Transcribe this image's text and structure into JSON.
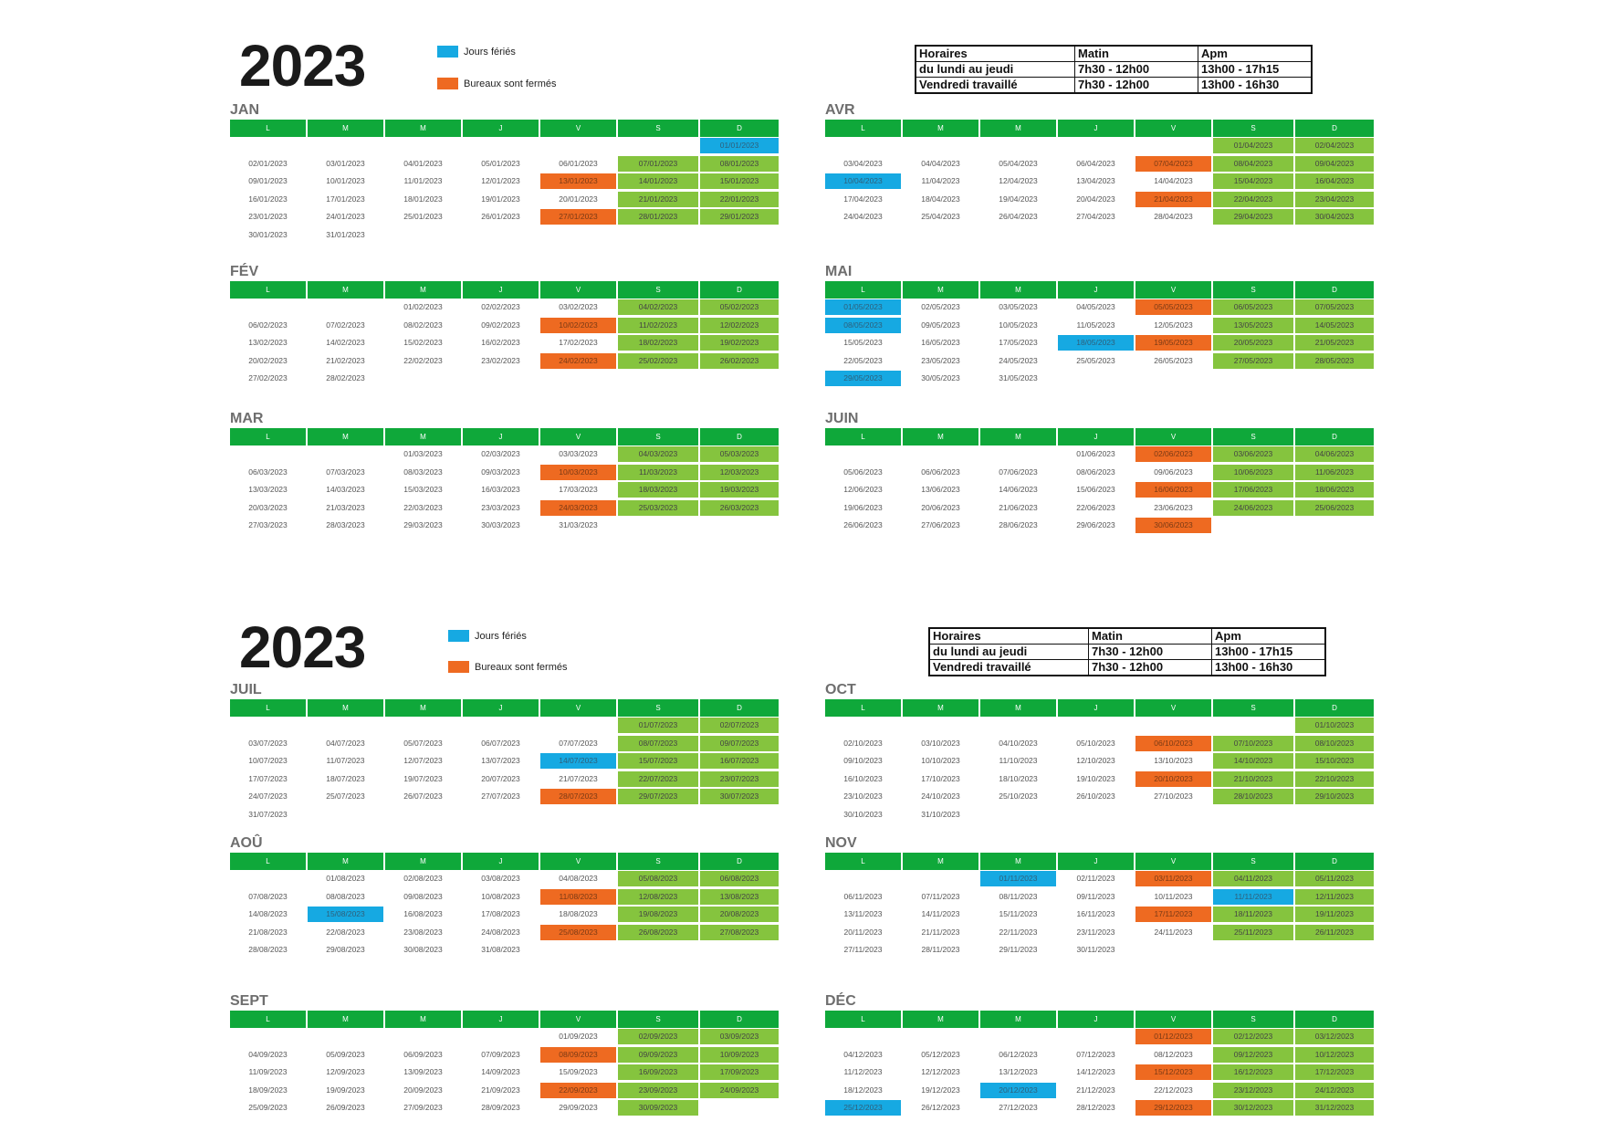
{
  "sections": [
    {
      "year": "2023",
      "legend": {
        "holiday_label": "Jours fériés",
        "closed_label": "Bureaux sont fermés"
      },
      "schedule": [
        [
          "Horaires",
          "Matin",
          "Apm"
        ],
        [
          "du lundi au jeudi",
          "7h30 - 12h00",
          "13h00 - 17h15"
        ],
        [
          "Vendredi travaillé",
          "7h30 - 12h00",
          "13h00 - 16h30"
        ]
      ]
    },
    {
      "year": "2023",
      "legend": {
        "holiday_label": "Jours fériés",
        "closed_label": "Bureaux sont fermés"
      },
      "schedule": [
        [
          "Horaires",
          "Matin",
          "Apm"
        ],
        [
          "du lundi au jeudi",
          "7h30 - 12h00",
          "13h00 - 17h15"
        ],
        [
          "Vendredi travaillé",
          "7h30 - 12h00",
          "13h00 - 16h30"
        ]
      ]
    }
  ],
  "colors": {
    "header": "#0fa83a",
    "weekend": "#85c43e",
    "holiday": "#16a9e2",
    "closed": "#ee6a21"
  },
  "day_headers": [
    "L",
    "M",
    "M",
    "J",
    "V",
    "S",
    "D"
  ],
  "months": [
    {
      "name": "JAN",
      "rows": [
        [
          "",
          "",
          "",
          "",
          "",
          "",
          "01/01/2023"
        ],
        [
          "02/01/2023",
          "03/01/2023",
          "04/01/2023",
          "05/01/2023",
          "06/01/2023",
          "07/01/2023",
          "08/01/2023"
        ],
        [
          "09/01/2023",
          "10/01/2023",
          "11/01/2023",
          "12/01/2023",
          "13/01/2023",
          "14/01/2023",
          "15/01/2023"
        ],
        [
          "16/01/2023",
          "17/01/2023",
          "18/01/2023",
          "19/01/2023",
          "20/01/2023",
          "21/01/2023",
          "22/01/2023"
        ],
        [
          "23/01/2023",
          "24/01/2023",
          "25/01/2023",
          "26/01/2023",
          "27/01/2023",
          "28/01/2023",
          "29/01/2023"
        ],
        [
          "30/01/2023",
          "31/01/2023",
          "",
          "",
          "",
          "",
          ""
        ]
      ],
      "holidays": [
        "01/01/2023"
      ],
      "closed": [
        "13/01/2023",
        "27/01/2023"
      ]
    },
    {
      "name": "FÉV",
      "rows": [
        [
          "",
          "",
          "01/02/2023",
          "02/02/2023",
          "03/02/2023",
          "04/02/2023",
          "05/02/2023"
        ],
        [
          "06/02/2023",
          "07/02/2023",
          "08/02/2023",
          "09/02/2023",
          "10/02/2023",
          "11/02/2023",
          "12/02/2023"
        ],
        [
          "13/02/2023",
          "14/02/2023",
          "15/02/2023",
          "16/02/2023",
          "17/02/2023",
          "18/02/2023",
          "19/02/2023"
        ],
        [
          "20/02/2023",
          "21/02/2023",
          "22/02/2023",
          "23/02/2023",
          "24/02/2023",
          "25/02/2023",
          "26/02/2023"
        ],
        [
          "27/02/2023",
          "28/02/2023",
          "",
          "",
          "",
          "",
          ""
        ]
      ],
      "holidays": [],
      "closed": [
        "10/02/2023",
        "24/02/2023"
      ]
    },
    {
      "name": "MAR",
      "rows": [
        [
          "",
          "",
          "01/03/2023",
          "02/03/2023",
          "03/03/2023",
          "04/03/2023",
          "05/03/2023"
        ],
        [
          "06/03/2023",
          "07/03/2023",
          "08/03/2023",
          "09/03/2023",
          "10/03/2023",
          "11/03/2023",
          "12/03/2023"
        ],
        [
          "13/03/2023",
          "14/03/2023",
          "15/03/2023",
          "16/03/2023",
          "17/03/2023",
          "18/03/2023",
          "19/03/2023"
        ],
        [
          "20/03/2023",
          "21/03/2023",
          "22/03/2023",
          "23/03/2023",
          "24/03/2023",
          "25/03/2023",
          "26/03/2023"
        ],
        [
          "27/03/2023",
          "28/03/2023",
          "29/03/2023",
          "30/03/2023",
          "31/03/2023",
          "",
          ""
        ]
      ],
      "holidays": [],
      "closed": [
        "10/03/2023",
        "24/03/2023"
      ]
    },
    {
      "name": "AVR",
      "rows": [
        [
          "",
          "",
          "",
          "",
          "",
          "01/04/2023",
          "02/04/2023"
        ],
        [
          "03/04/2023",
          "04/04/2023",
          "05/04/2023",
          "06/04/2023",
          "07/04/2023",
          "08/04/2023",
          "09/04/2023"
        ],
        [
          "10/04/2023",
          "11/04/2023",
          "12/04/2023",
          "13/04/2023",
          "14/04/2023",
          "15/04/2023",
          "16/04/2023"
        ],
        [
          "17/04/2023",
          "18/04/2023",
          "19/04/2023",
          "20/04/2023",
          "21/04/2023",
          "22/04/2023",
          "23/04/2023"
        ],
        [
          "24/04/2023",
          "25/04/2023",
          "26/04/2023",
          "27/04/2023",
          "28/04/2023",
          "29/04/2023",
          "30/04/2023"
        ]
      ],
      "holidays": [
        "10/04/2023"
      ],
      "closed": [
        "07/04/2023",
        "21/04/2023"
      ]
    },
    {
      "name": "MAI",
      "rows": [
        [
          "01/05/2023",
          "02/05/2023",
          "03/05/2023",
          "04/05/2023",
          "05/05/2023",
          "06/05/2023",
          "07/05/2023"
        ],
        [
          "08/05/2023",
          "09/05/2023",
          "10/05/2023",
          "11/05/2023",
          "12/05/2023",
          "13/05/2023",
          "14/05/2023"
        ],
        [
          "15/05/2023",
          "16/05/2023",
          "17/05/2023",
          "18/05/2023",
          "19/05/2023",
          "20/05/2023",
          "21/05/2023"
        ],
        [
          "22/05/2023",
          "23/05/2023",
          "24/05/2023",
          "25/05/2023",
          "26/05/2023",
          "27/05/2023",
          "28/05/2023"
        ],
        [
          "29/05/2023",
          "30/05/2023",
          "31/05/2023",
          "",
          "",
          "",
          ""
        ]
      ],
      "holidays": [
        "01/05/2023",
        "08/05/2023",
        "18/05/2023",
        "29/05/2023"
      ],
      "closed": [
        "05/05/2023",
        "19/05/2023"
      ]
    },
    {
      "name": "JUIN",
      "rows": [
        [
          "",
          "",
          "",
          "01/06/2023",
          "02/06/2023",
          "03/06/2023",
          "04/06/2023"
        ],
        [
          "05/06/2023",
          "06/06/2023",
          "07/06/2023",
          "08/06/2023",
          "09/06/2023",
          "10/06/2023",
          "11/06/2023"
        ],
        [
          "12/06/2023",
          "13/06/2023",
          "14/06/2023",
          "15/06/2023",
          "16/06/2023",
          "17/06/2023",
          "18/06/2023"
        ],
        [
          "19/06/2023",
          "20/06/2023",
          "21/06/2023",
          "22/06/2023",
          "23/06/2023",
          "24/06/2023",
          "25/06/2023"
        ],
        [
          "26/06/2023",
          "27/06/2023",
          "28/06/2023",
          "29/06/2023",
          "30/06/2023",
          "",
          ""
        ]
      ],
      "holidays": [],
      "closed": [
        "02/06/2023",
        "16/06/2023",
        "30/06/2023"
      ]
    },
    {
      "name": "JUIL",
      "rows": [
        [
          "",
          "",
          "",
          "",
          "",
          "01/07/2023",
          "02/07/2023"
        ],
        [
          "03/07/2023",
          "04/07/2023",
          "05/07/2023",
          "06/07/2023",
          "07/07/2023",
          "08/07/2023",
          "09/07/2023"
        ],
        [
          "10/07/2023",
          "11/07/2023",
          "12/07/2023",
          "13/07/2023",
          "14/07/2023",
          "15/07/2023",
          "16/07/2023"
        ],
        [
          "17/07/2023",
          "18/07/2023",
          "19/07/2023",
          "20/07/2023",
          "21/07/2023",
          "22/07/2023",
          "23/07/2023"
        ],
        [
          "24/07/2023",
          "25/07/2023",
          "26/07/2023",
          "27/07/2023",
          "28/07/2023",
          "29/07/2023",
          "30/07/2023"
        ],
        [
          "31/07/2023",
          "",
          "",
          "",
          "",
          "",
          ""
        ]
      ],
      "holidays": [
        "14/07/2023"
      ],
      "closed": [
        "28/07/2023"
      ]
    },
    {
      "name": "AOÛ",
      "rows": [
        [
          "",
          "01/08/2023",
          "02/08/2023",
          "03/08/2023",
          "04/08/2023",
          "05/08/2023",
          "06/08/2023"
        ],
        [
          "07/08/2023",
          "08/08/2023",
          "09/08/2023",
          "10/08/2023",
          "11/08/2023",
          "12/08/2023",
          "13/08/2023"
        ],
        [
          "14/08/2023",
          "15/08/2023",
          "16/08/2023",
          "17/08/2023",
          "18/08/2023",
          "19/08/2023",
          "20/08/2023"
        ],
        [
          "21/08/2023",
          "22/08/2023",
          "23/08/2023",
          "24/08/2023",
          "25/08/2023",
          "26/08/2023",
          "27/08/2023"
        ],
        [
          "28/08/2023",
          "29/08/2023",
          "30/08/2023",
          "31/08/2023",
          "",
          "",
          ""
        ]
      ],
      "holidays": [
        "15/08/2023"
      ],
      "closed": [
        "11/08/2023",
        "25/08/2023"
      ]
    },
    {
      "name": "SEPT",
      "rows": [
        [
          "",
          "",
          "",
          "",
          "01/09/2023",
          "02/09/2023",
          "03/09/2023"
        ],
        [
          "04/09/2023",
          "05/09/2023",
          "06/09/2023",
          "07/09/2023",
          "08/09/2023",
          "09/09/2023",
          "10/09/2023"
        ],
        [
          "11/09/2023",
          "12/09/2023",
          "13/09/2023",
          "14/09/2023",
          "15/09/2023",
          "16/09/2023",
          "17/09/2023"
        ],
        [
          "18/09/2023",
          "19/09/2023",
          "20/09/2023",
          "21/09/2023",
          "22/09/2023",
          "23/09/2023",
          "24/09/2023"
        ],
        [
          "25/09/2023",
          "26/09/2023",
          "27/09/2023",
          "28/09/2023",
          "29/09/2023",
          "30/09/2023",
          ""
        ]
      ],
      "holidays": [],
      "closed": [
        "08/09/2023",
        "22/09/2023"
      ]
    },
    {
      "name": "OCT",
      "rows": [
        [
          "",
          "",
          "",
          "",
          "",
          "",
          "01/10/2023"
        ],
        [
          "02/10/2023",
          "03/10/2023",
          "04/10/2023",
          "05/10/2023",
          "06/10/2023",
          "07/10/2023",
          "08/10/2023"
        ],
        [
          "09/10/2023",
          "10/10/2023",
          "11/10/2023",
          "12/10/2023",
          "13/10/2023",
          "14/10/2023",
          "15/10/2023"
        ],
        [
          "16/10/2023",
          "17/10/2023",
          "18/10/2023",
          "19/10/2023",
          "20/10/2023",
          "21/10/2023",
          "22/10/2023"
        ],
        [
          "23/10/2023",
          "24/10/2023",
          "25/10/2023",
          "26/10/2023",
          "27/10/2023",
          "28/10/2023",
          "29/10/2023"
        ],
        [
          "30/10/2023",
          "31/10/2023",
          "",
          "",
          "",
          "",
          ""
        ]
      ],
      "holidays": [],
      "closed": [
        "06/10/2023",
        "20/10/2023"
      ]
    },
    {
      "name": "NOV",
      "rows": [
        [
          "",
          "",
          "01/11/2023",
          "02/11/2023",
          "03/11/2023",
          "04/11/2023",
          "05/11/2023"
        ],
        [
          "06/11/2023",
          "07/11/2023",
          "08/11/2023",
          "09/11/2023",
          "10/11/2023",
          "11/11/2023",
          "12/11/2023"
        ],
        [
          "13/11/2023",
          "14/11/2023",
          "15/11/2023",
          "16/11/2023",
          "17/11/2023",
          "18/11/2023",
          "19/11/2023"
        ],
        [
          "20/11/2023",
          "21/11/2023",
          "22/11/2023",
          "23/11/2023",
          "24/11/2023",
          "25/11/2023",
          "26/11/2023"
        ],
        [
          "27/11/2023",
          "28/11/2023",
          "29/11/2023",
          "30/11/2023",
          "",
          "",
          ""
        ]
      ],
      "holidays": [
        "01/11/2023",
        "11/11/2023"
      ],
      "closed": [
        "03/11/2023",
        "17/11/2023"
      ]
    },
    {
      "name": "DÉC",
      "rows": [
        [
          "",
          "",
          "",
          "",
          "01/12/2023",
          "02/12/2023",
          "03/12/2023"
        ],
        [
          "04/12/2023",
          "05/12/2023",
          "06/12/2023",
          "07/12/2023",
          "08/12/2023",
          "09/12/2023",
          "10/12/2023"
        ],
        [
          "11/12/2023",
          "12/12/2023",
          "13/12/2023",
          "14/12/2023",
          "15/12/2023",
          "16/12/2023",
          "17/12/2023"
        ],
        [
          "18/12/2023",
          "19/12/2023",
          "20/12/2023",
          "21/12/2023",
          "22/12/2023",
          "23/12/2023",
          "24/12/2023"
        ],
        [
          "25/12/2023",
          "26/12/2023",
          "27/12/2023",
          "28/12/2023",
          "29/12/2023",
          "30/12/2023",
          "31/12/2023"
        ]
      ],
      "holidays": [
        "20/12/2023",
        "25/12/2023"
      ],
      "closed": [
        "01/12/2023",
        "15/12/2023",
        "29/12/2023"
      ]
    }
  ]
}
